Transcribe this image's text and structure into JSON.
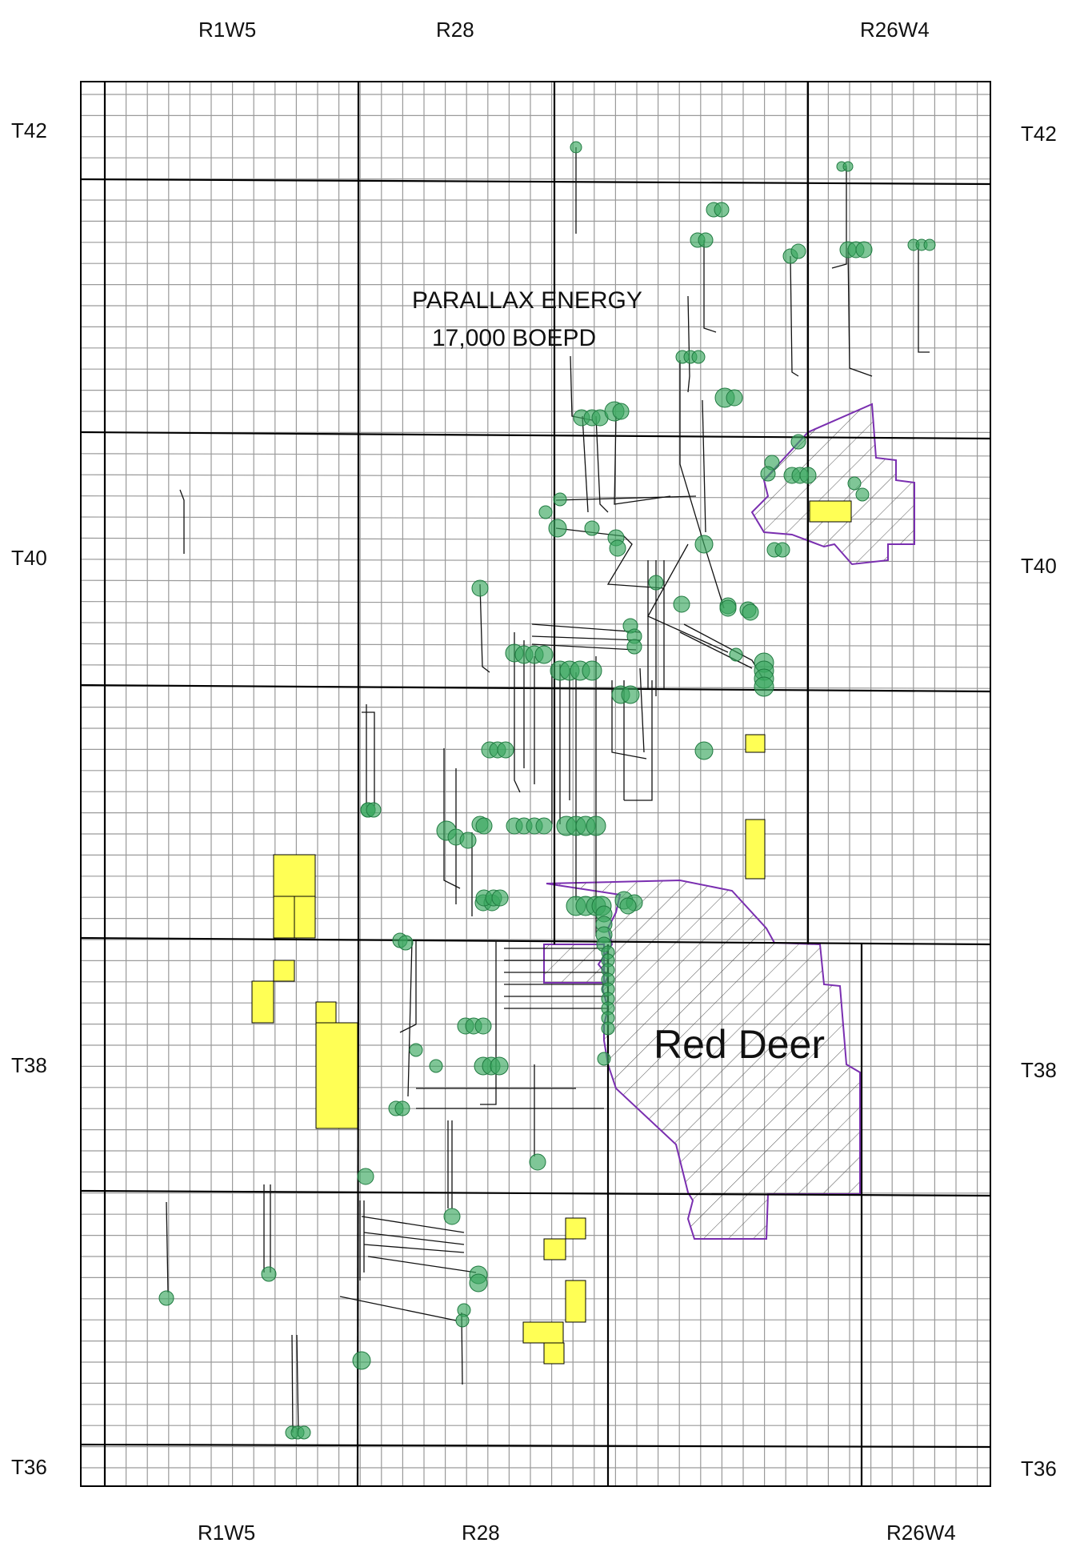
{
  "range_labels_top": [
    "R1W5",
    "R28",
    "R26W4"
  ],
  "range_labels_bottom": [
    "R1W5",
    "R28",
    "R26W4"
  ],
  "township_labels_left": [
    "T42",
    "T40",
    "T38",
    "T36"
  ],
  "township_labels_right": [
    "T42",
    "T40",
    "T38",
    "T36"
  ],
  "company": {
    "name": "PARALLAX ENERGY",
    "production": "17,000 BOEPD"
  },
  "city_label": "Red Deer",
  "colors": {
    "grid_minor": "#9a9a9a",
    "grid_major": "#000000",
    "land_parcel": "#ffff55",
    "well_marker": "#3aa860",
    "city_outline": "#7a2fb0",
    "hatch": "#555555"
  },
  "icons": {
    "well": "green-circle-icon",
    "well_path": "black-polyline"
  }
}
